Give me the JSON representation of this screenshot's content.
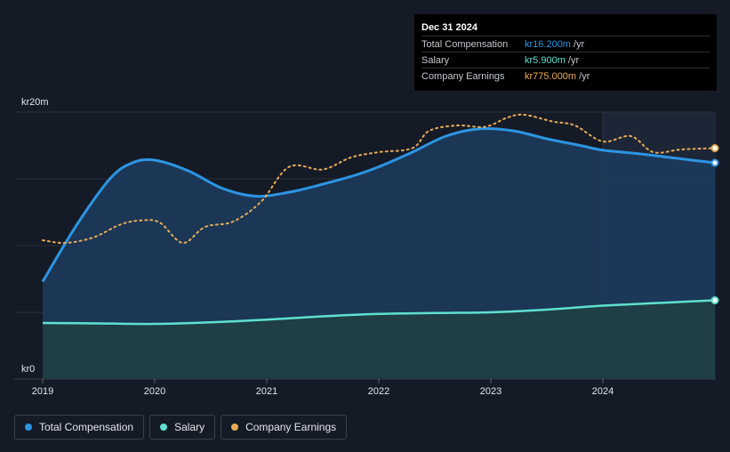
{
  "chart_data": {
    "type": "area",
    "y_axis": {
      "top_label": "kr20m",
      "bottom_label": "kr0",
      "ylim": [
        0,
        20
      ]
    },
    "x_ticks": [
      "2019",
      "2020",
      "2021",
      "2022",
      "2023",
      "2024"
    ],
    "xlim": [
      2018.75,
      2025.0
    ],
    "forecast_start": 2024.0,
    "grid": true,
    "series": [
      {
        "name": "Total Compensation",
        "color": "#2c95e3",
        "fill": "#1c3c5e",
        "style": "solid",
        "x": [
          2019.0,
          2019.3,
          2019.6,
          2019.8,
          2020.0,
          2020.3,
          2020.6,
          2020.9,
          2021.2,
          2021.5,
          2021.8,
          2022.0,
          2022.3,
          2022.6,
          2022.9,
          2023.2,
          2023.5,
          2023.8,
          2024.0,
          2024.3,
          2024.6,
          2025.0
        ],
        "values": [
          7.3,
          11.5,
          15.0,
          16.2,
          16.4,
          15.6,
          14.3,
          13.7,
          14.0,
          14.6,
          15.3,
          15.9,
          17.0,
          18.2,
          18.75,
          18.6,
          18.0,
          17.5,
          17.15,
          16.9,
          16.6,
          16.2
        ]
      },
      {
        "name": "Salary",
        "color": "#5fe1d0",
        "fill": "#203f45",
        "style": "solid",
        "x": [
          2019.0,
          2019.5,
          2020.0,
          2020.5,
          2021.0,
          2021.5,
          2022.0,
          2022.5,
          2023.0,
          2023.5,
          2024.0,
          2024.5,
          2025.0
        ],
        "values": [
          4.2,
          4.17,
          4.13,
          4.25,
          4.45,
          4.7,
          4.88,
          4.95,
          5.0,
          5.2,
          5.5,
          5.7,
          5.9
        ]
      },
      {
        "name": "Company Earnings",
        "color": "#e8ab57",
        "style": "dotted",
        "x": [
          2019.0,
          2019.2,
          2019.45,
          2019.7,
          2019.9,
          2020.05,
          2020.25,
          2020.45,
          2020.7,
          2020.95,
          2021.2,
          2021.5,
          2021.75,
          2022.0,
          2022.3,
          2022.45,
          2022.7,
          2022.95,
          2023.15,
          2023.3,
          2023.55,
          2023.75,
          2024.0,
          2024.25,
          2024.45,
          2024.7,
          2025.0
        ],
        "values": [
          10.4,
          10.2,
          10.6,
          11.6,
          11.9,
          11.7,
          10.2,
          11.4,
          11.8,
          13.3,
          15.9,
          15.7,
          16.6,
          17.0,
          17.3,
          18.6,
          19.0,
          18.9,
          19.6,
          19.8,
          19.3,
          19.0,
          17.8,
          18.2,
          17.0,
          17.2,
          17.3
        ]
      }
    ]
  },
  "tooltip": {
    "date": "Dec 31 2024",
    "rows": [
      {
        "label": "Total Compensation",
        "value": "kr16.200m",
        "unit": "/yr",
        "color": "#2c95e3"
      },
      {
        "label": "Salary",
        "value": "kr5.900m",
        "unit": "/yr",
        "color": "#5fe1d0"
      },
      {
        "label": "Company Earnings",
        "value": "kr775.000m",
        "unit": "/yr",
        "color": "#e8ab57"
      }
    ]
  },
  "legend": [
    {
      "label": "Total Compensation",
      "color": "#2c95e3"
    },
    {
      "label": "Salary",
      "color": "#5fe1d0"
    },
    {
      "label": "Company Earnings",
      "color": "#e8ab57"
    }
  ]
}
